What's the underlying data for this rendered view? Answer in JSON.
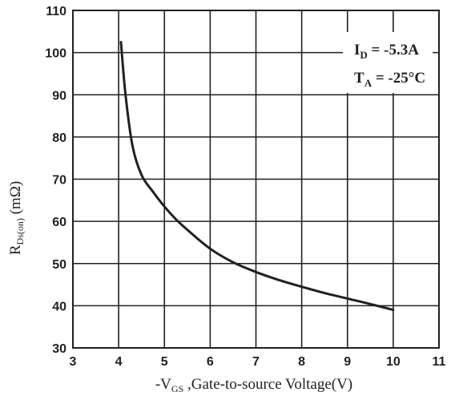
{
  "chart_data": {
    "type": "line",
    "title": "",
    "xlabel": {
      "prefix": "-V",
      "sub": "GS",
      "suffix": " ,Gate-to-source Voltage(V)"
    },
    "ylabel": {
      "prefix": "R",
      "sub": "Ds(on)",
      "suffix": " (mΩ)"
    },
    "xlim": [
      3,
      11
    ],
    "ylim": [
      30,
      110
    ],
    "xticks": [
      "3",
      "4",
      "5",
      "6",
      "7",
      "8",
      "9",
      "10",
      "11"
    ],
    "yticks": [
      "30",
      "40",
      "50",
      "60",
      "70",
      "80",
      "90",
      "100",
      "110"
    ],
    "grid": true,
    "annotations": [
      {
        "main": "I",
        "sub": "D",
        "rest": " = -5.3A"
      },
      {
        "main": "T",
        "sub": "A",
        "rest": " = -25°C"
      }
    ],
    "series": [
      {
        "x": [
          4.05,
          4.15,
          4.3,
          4.5,
          4.75,
          5.0,
          5.25,
          5.5,
          6.0,
          6.5,
          7.0,
          7.5,
          8.0,
          8.5,
          9.0,
          9.5,
          10.0
        ],
        "values": [
          102.5,
          90,
          78,
          71,
          67,
          63.5,
          60.5,
          58,
          53.5,
          50.3,
          48.0,
          46.1,
          44.5,
          43.0,
          41.7,
          40.4,
          39.0
        ]
      }
    ]
  }
}
